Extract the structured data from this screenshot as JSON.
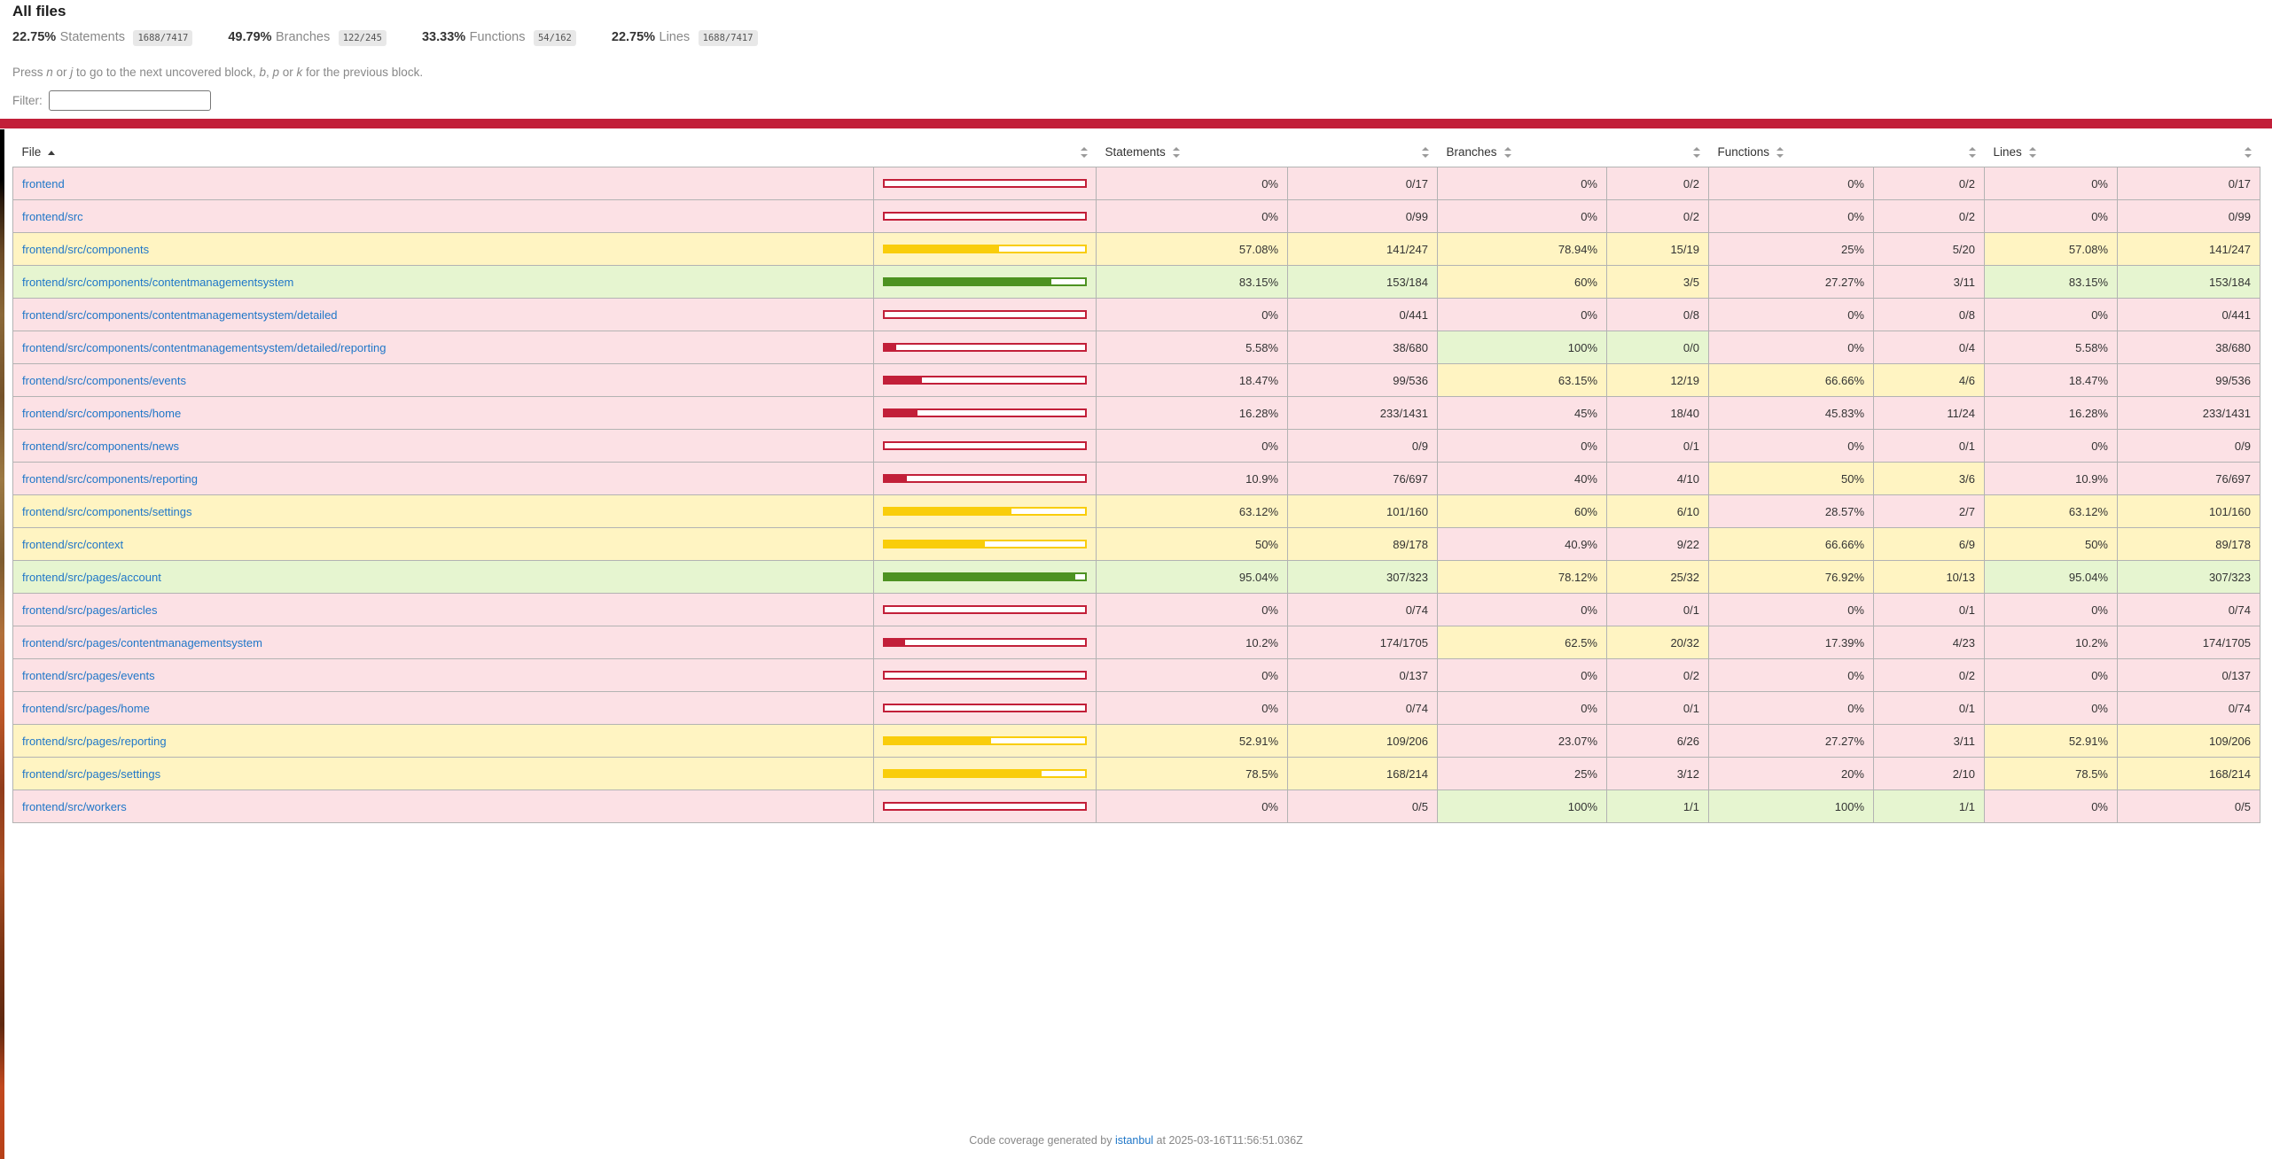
{
  "page": {
    "title": "All files",
    "keyboard_hint": [
      {
        "text": "Press ",
        "em": false
      },
      {
        "text": "n",
        "em": true
      },
      {
        "text": " or ",
        "em": false
      },
      {
        "text": "j",
        "em": true
      },
      {
        "text": " to go to the next uncovered block, ",
        "em": false
      },
      {
        "text": "b",
        "em": true
      },
      {
        "text": ", ",
        "em": false
      },
      {
        "text": "p",
        "em": true
      },
      {
        "text": " or ",
        "em": false
      },
      {
        "text": "k",
        "em": true
      },
      {
        "text": " for the previous block.",
        "em": false
      }
    ],
    "filter_label": "Filter:",
    "filter_value": "",
    "status_level": "low"
  },
  "summary": [
    {
      "pct": "22.75%",
      "label": "Statements",
      "fraction": "1688/7417"
    },
    {
      "pct": "49.79%",
      "label": "Branches",
      "fraction": "122/245"
    },
    {
      "pct": "33.33%",
      "label": "Functions",
      "fraction": "54/162"
    },
    {
      "pct": "22.75%",
      "label": "Lines",
      "fraction": "1688/7417"
    }
  ],
  "table": {
    "headers": {
      "file": "File",
      "statements": "Statements",
      "branches": "Branches",
      "functions": "Functions",
      "lines": "Lines"
    },
    "sort": {
      "column": "file",
      "direction": "asc"
    },
    "rows": [
      {
        "file": "frontend",
        "statements": {
          "num": 0,
          "pct": "0%",
          "raw": "0/17"
        },
        "branches": {
          "num": 0,
          "pct": "0%",
          "raw": "0/2"
        },
        "functions": {
          "num": 0,
          "pct": "0%",
          "raw": "0/2"
        },
        "lines": {
          "num": 0,
          "pct": "0%",
          "raw": "0/17"
        }
      },
      {
        "file": "frontend/src",
        "statements": {
          "num": 0,
          "pct": "0%",
          "raw": "0/99"
        },
        "branches": {
          "num": 0,
          "pct": "0%",
          "raw": "0/2"
        },
        "functions": {
          "num": 0,
          "pct": "0%",
          "raw": "0/2"
        },
        "lines": {
          "num": 0,
          "pct": "0%",
          "raw": "0/99"
        }
      },
      {
        "file": "frontend/src/components",
        "statements": {
          "num": 57.08,
          "pct": "57.08%",
          "raw": "141/247"
        },
        "branches": {
          "num": 78.94,
          "pct": "78.94%",
          "raw": "15/19"
        },
        "functions": {
          "num": 25,
          "pct": "25%",
          "raw": "5/20"
        },
        "lines": {
          "num": 57.08,
          "pct": "57.08%",
          "raw": "141/247"
        }
      },
      {
        "file": "frontend/src/components/contentmanagementsystem",
        "statements": {
          "num": 83.15,
          "pct": "83.15%",
          "raw": "153/184"
        },
        "branches": {
          "num": 60,
          "pct": "60%",
          "raw": "3/5"
        },
        "functions": {
          "num": 27.27,
          "pct": "27.27%",
          "raw": "3/11"
        },
        "lines": {
          "num": 83.15,
          "pct": "83.15%",
          "raw": "153/184"
        }
      },
      {
        "file": "frontend/src/components/contentmanagementsystem/detailed",
        "statements": {
          "num": 0,
          "pct": "0%",
          "raw": "0/441"
        },
        "branches": {
          "num": 0,
          "pct": "0%",
          "raw": "0/8"
        },
        "functions": {
          "num": 0,
          "pct": "0%",
          "raw": "0/8"
        },
        "lines": {
          "num": 0,
          "pct": "0%",
          "raw": "0/441"
        }
      },
      {
        "file": "frontend/src/components/contentmanagementsystem/detailed/reporting",
        "statements": {
          "num": 5.58,
          "pct": "5.58%",
          "raw": "38/680"
        },
        "branches": {
          "num": 100,
          "pct": "100%",
          "raw": "0/0"
        },
        "functions": {
          "num": 0,
          "pct": "0%",
          "raw": "0/4"
        },
        "lines": {
          "num": 5.58,
          "pct": "5.58%",
          "raw": "38/680"
        }
      },
      {
        "file": "frontend/src/components/events",
        "statements": {
          "num": 18.47,
          "pct": "18.47%",
          "raw": "99/536"
        },
        "branches": {
          "num": 63.15,
          "pct": "63.15%",
          "raw": "12/19"
        },
        "functions": {
          "num": 66.66,
          "pct": "66.66%",
          "raw": "4/6"
        },
        "lines": {
          "num": 18.47,
          "pct": "18.47%",
          "raw": "99/536"
        }
      },
      {
        "file": "frontend/src/components/home",
        "statements": {
          "num": 16.28,
          "pct": "16.28%",
          "raw": "233/1431"
        },
        "branches": {
          "num": 45,
          "pct": "45%",
          "raw": "18/40"
        },
        "functions": {
          "num": 45.83,
          "pct": "45.83%",
          "raw": "11/24"
        },
        "lines": {
          "num": 16.28,
          "pct": "16.28%",
          "raw": "233/1431"
        }
      },
      {
        "file": "frontend/src/components/news",
        "statements": {
          "num": 0,
          "pct": "0%",
          "raw": "0/9"
        },
        "branches": {
          "num": 0,
          "pct": "0%",
          "raw": "0/1"
        },
        "functions": {
          "num": 0,
          "pct": "0%",
          "raw": "0/1"
        },
        "lines": {
          "num": 0,
          "pct": "0%",
          "raw": "0/9"
        }
      },
      {
        "file": "frontend/src/components/reporting",
        "statements": {
          "num": 10.9,
          "pct": "10.9%",
          "raw": "76/697"
        },
        "branches": {
          "num": 40,
          "pct": "40%",
          "raw": "4/10"
        },
        "functions": {
          "num": 50,
          "pct": "50%",
          "raw": "3/6"
        },
        "lines": {
          "num": 10.9,
          "pct": "10.9%",
          "raw": "76/697"
        }
      },
      {
        "file": "frontend/src/components/settings",
        "statements": {
          "num": 63.12,
          "pct": "63.12%",
          "raw": "101/160"
        },
        "branches": {
          "num": 60,
          "pct": "60%",
          "raw": "6/10"
        },
        "functions": {
          "num": 28.57,
          "pct": "28.57%",
          "raw": "2/7"
        },
        "lines": {
          "num": 63.12,
          "pct": "63.12%",
          "raw": "101/160"
        }
      },
      {
        "file": "frontend/src/context",
        "statements": {
          "num": 50,
          "pct": "50%",
          "raw": "89/178"
        },
        "branches": {
          "num": 40.9,
          "pct": "40.9%",
          "raw": "9/22"
        },
        "functions": {
          "num": 66.66,
          "pct": "66.66%",
          "raw": "6/9"
        },
        "lines": {
          "num": 50,
          "pct": "50%",
          "raw": "89/178"
        }
      },
      {
        "file": "frontend/src/pages/account",
        "statements": {
          "num": 95.04,
          "pct": "95.04%",
          "raw": "307/323"
        },
        "branches": {
          "num": 78.12,
          "pct": "78.12%",
          "raw": "25/32"
        },
        "functions": {
          "num": 76.92,
          "pct": "76.92%",
          "raw": "10/13"
        },
        "lines": {
          "num": 95.04,
          "pct": "95.04%",
          "raw": "307/323"
        }
      },
      {
        "file": "frontend/src/pages/articles",
        "statements": {
          "num": 0,
          "pct": "0%",
          "raw": "0/74"
        },
        "branches": {
          "num": 0,
          "pct": "0%",
          "raw": "0/1"
        },
        "functions": {
          "num": 0,
          "pct": "0%",
          "raw": "0/1"
        },
        "lines": {
          "num": 0,
          "pct": "0%",
          "raw": "0/74"
        }
      },
      {
        "file": "frontend/src/pages/contentmanagementsystem",
        "statements": {
          "num": 10.2,
          "pct": "10.2%",
          "raw": "174/1705"
        },
        "branches": {
          "num": 62.5,
          "pct": "62.5%",
          "raw": "20/32"
        },
        "functions": {
          "num": 17.39,
          "pct": "17.39%",
          "raw": "4/23"
        },
        "lines": {
          "num": 10.2,
          "pct": "10.2%",
          "raw": "174/1705"
        }
      },
      {
        "file": "frontend/src/pages/events",
        "statements": {
          "num": 0,
          "pct": "0%",
          "raw": "0/137"
        },
        "branches": {
          "num": 0,
          "pct": "0%",
          "raw": "0/2"
        },
        "functions": {
          "num": 0,
          "pct": "0%",
          "raw": "0/2"
        },
        "lines": {
          "num": 0,
          "pct": "0%",
          "raw": "0/137"
        }
      },
      {
        "file": "frontend/src/pages/home",
        "statements": {
          "num": 0,
          "pct": "0%",
          "raw": "0/74"
        },
        "branches": {
          "num": 0,
          "pct": "0%",
          "raw": "0/1"
        },
        "functions": {
          "num": 0,
          "pct": "0%",
          "raw": "0/1"
        },
        "lines": {
          "num": 0,
          "pct": "0%",
          "raw": "0/74"
        }
      },
      {
        "file": "frontend/src/pages/reporting",
        "statements": {
          "num": 52.91,
          "pct": "52.91%",
          "raw": "109/206"
        },
        "branches": {
          "num": 23.07,
          "pct": "23.07%",
          "raw": "6/26"
        },
        "functions": {
          "num": 27.27,
          "pct": "27.27%",
          "raw": "3/11"
        },
        "lines": {
          "num": 52.91,
          "pct": "52.91%",
          "raw": "109/206"
        }
      },
      {
        "file": "frontend/src/pages/settings",
        "statements": {
          "num": 78.5,
          "pct": "78.5%",
          "raw": "168/214"
        },
        "branches": {
          "num": 25,
          "pct": "25%",
          "raw": "3/12"
        },
        "functions": {
          "num": 20,
          "pct": "20%",
          "raw": "2/10"
        },
        "lines": {
          "num": 78.5,
          "pct": "78.5%",
          "raw": "168/214"
        }
      },
      {
        "file": "frontend/src/workers",
        "statements": {
          "num": 0,
          "pct": "0%",
          "raw": "0/5"
        },
        "branches": {
          "num": 100,
          "pct": "100%",
          "raw": "1/1"
        },
        "functions": {
          "num": 100,
          "pct": "100%",
          "raw": "1/1"
        },
        "lines": {
          "num": 0,
          "pct": "0%",
          "raw": "0/5"
        }
      }
    ]
  },
  "footer": {
    "prefix": "Code coverage generated by ",
    "link_label": "istanbul",
    "suffix": " at 2025-03-16T11:56:51.036Z"
  },
  "colors": {
    "status_line": "#C21F39",
    "low_bg": "#FCE1E5",
    "medium_bg": "#FFF4C2",
    "high_bg": "#E6F5D0",
    "low_accent": "#C21F39",
    "medium_accent": "#F9CD0B",
    "high_accent": "#4D9221",
    "link": "#2077C8",
    "quiet_text": "#888888",
    "fraction_bg": "#E8E8E8"
  }
}
